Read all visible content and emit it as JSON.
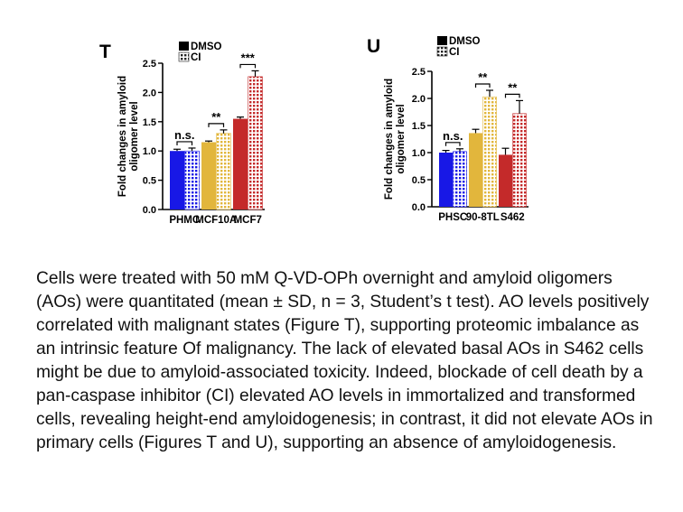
{
  "chart_data": [
    {
      "type": "bar",
      "panel_label": "T",
      "ylabel": "Fold changes in amyloid oligomer level",
      "ylim": [
        0,
        2.5
      ],
      "yticks": [
        "0.0",
        "0.5",
        "1.0",
        "1.5",
        "2.0",
        "2.5"
      ],
      "categories": [
        "PHMC",
        "MCF10A",
        "MCF7"
      ],
      "legend": [
        "DMSO",
        "CI"
      ],
      "series": [
        {
          "name": "DMSO",
          "values": [
            1.0,
            1.15,
            1.55
          ],
          "errors": [
            0.03,
            0.02,
            0.03
          ]
        },
        {
          "name": "CI",
          "values": [
            1.0,
            1.3,
            2.27
          ],
          "errors": [
            0.05,
            0.06,
            0.1
          ]
        }
      ],
      "bar_colors": [
        "#1818e6",
        "#e2b63c",
        "#c42a2a"
      ],
      "significance": [
        "n.s.",
        "**",
        "***"
      ]
    },
    {
      "type": "bar",
      "panel_label": "U",
      "ylabel": "Fold changes in amyloid oligomer level",
      "ylim": [
        0,
        2.5
      ],
      "yticks": [
        "0.0",
        "0.5",
        "1.0",
        "1.5",
        "2.0",
        "2.5"
      ],
      "categories": [
        "PHSC",
        "90-8TL",
        "S462"
      ],
      "legend": [
        "DMSO",
        "CI"
      ],
      "series": [
        {
          "name": "DMSO",
          "values": [
            1.0,
            1.36,
            0.96
          ],
          "errors": [
            0.04,
            0.07,
            0.12
          ]
        },
        {
          "name": "CI",
          "values": [
            1.02,
            2.03,
            1.72
          ],
          "errors": [
            0.05,
            0.12,
            0.24
          ]
        }
      ],
      "bar_colors": [
        "#1818e6",
        "#e2b63c",
        "#c42a2a"
      ],
      "significance": [
        "n.s.",
        "**",
        "**"
      ]
    }
  ],
  "caption": "Cells were treated with 50 mM Q-VD-OPh overnight and amyloid oligomers (AOs) were quantitated (mean ± SD, n = 3, Student’s t test). AO levels positively correlated with malignant states (Figure T), supporting proteomic imbalance as an intrinsic feature Of malignancy. The lack of elevated basal AOs in S462 cells might be due to amyloid-associated toxicity. Indeed, blockade of cell death by a pan-caspase inhibitor (CI) elevated AO levels in immortalized and transformed cells, revealing height-end amyloidogenesis; in contrast, it did not elevate AOs in primary cells (Figures T and U), supporting an absence of amyloidogenesis."
}
